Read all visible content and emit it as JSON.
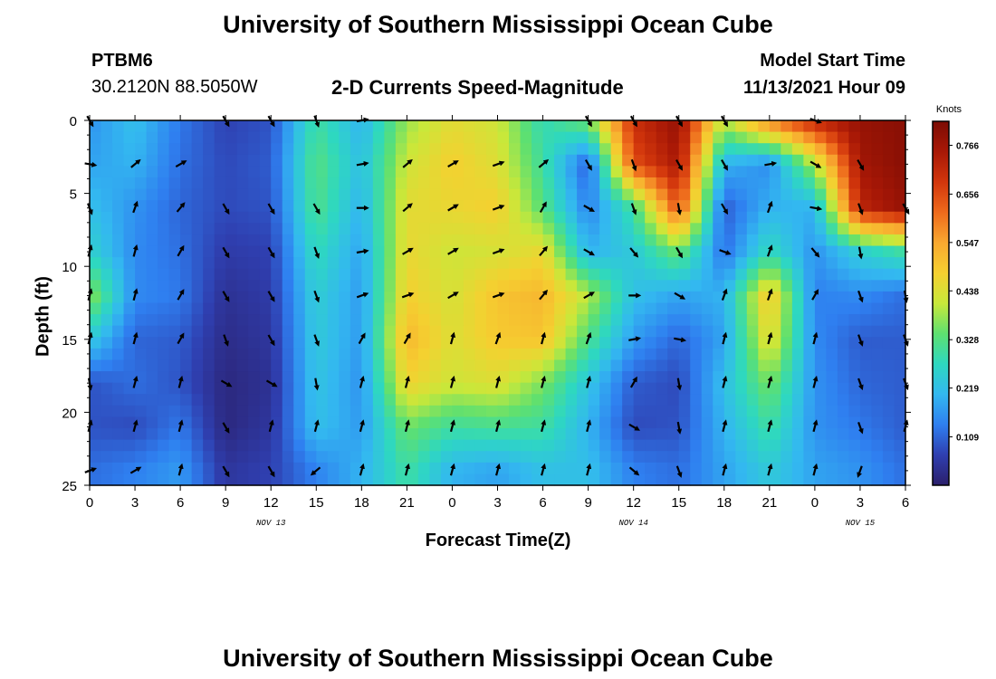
{
  "header": {
    "title": "University of Southern Mississippi Ocean Cube",
    "station_id": "PTBM6",
    "coords": "30.2120N  88.5050W",
    "subtitle": "2-D Currents Speed-Magnitude",
    "model_start_label": "Model Start Time",
    "model_start_value": "11/13/2021 Hour 09"
  },
  "footer": {
    "title": "University of Southern Mississippi Ocean Cube"
  },
  "colors": {
    "colormap": [
      "#2b1f6b",
      "#2f3fb0",
      "#2f7ff0",
      "#33b8f0",
      "#2ed8c0",
      "#5ee070",
      "#c8e83a",
      "#f5d030",
      "#f8a830",
      "#ee6a1c",
      "#d2360c",
      "#a81806",
      "#7c0c04"
    ]
  },
  "chart_data": {
    "type": "heatmap",
    "title": "2-D Currents Speed-Magnitude",
    "xlabel": "Forecast Time(Z)",
    "ylabel": "Depth (ft)",
    "colorbar_label": "Knots",
    "colorbar_ticks": [
      "0.766",
      "0.656",
      "0.547",
      "0.438",
      "0.328",
      "0.219",
      "0.109"
    ],
    "colorbar_range": [
      0.0,
      0.82
    ],
    "x_tick_labels": [
      "0",
      "3",
      "6",
      "9",
      "12",
      "15",
      "18",
      "21",
      "0",
      "3",
      "6",
      "9",
      "12",
      "15",
      "18",
      "21",
      "0",
      "3",
      "6"
    ],
    "x_range_hours": [
      0,
      54
    ],
    "date_labels": [
      {
        "text": "NOV 13",
        "hour": 12
      },
      {
        "text": "NOV 14",
        "hour": 36
      },
      {
        "text": "NOV 15",
        "hour": 51
      }
    ],
    "y_ticks": [
      0,
      5,
      10,
      15,
      20,
      25
    ],
    "ylim": [
      0,
      25
    ],
    "depths": [
      0,
      3,
      6,
      9,
      12,
      15,
      18,
      21,
      24
    ],
    "hours": [
      0,
      3,
      6,
      9,
      12,
      15,
      18,
      21,
      24,
      27,
      30,
      33,
      36,
      39,
      42,
      45,
      48,
      51,
      54
    ],
    "speed_knots": [
      [
        0.16,
        0.22,
        0.13,
        0.07,
        0.09,
        0.3,
        0.2,
        0.38,
        0.45,
        0.42,
        0.28,
        0.36,
        0.7,
        0.78,
        0.4,
        0.6,
        0.72,
        0.78,
        0.8
      ],
      [
        0.18,
        0.2,
        0.12,
        0.08,
        0.1,
        0.33,
        0.22,
        0.42,
        0.48,
        0.44,
        0.3,
        0.1,
        0.65,
        0.75,
        0.2,
        0.15,
        0.4,
        0.76,
        0.8
      ],
      [
        0.22,
        0.16,
        0.11,
        0.08,
        0.09,
        0.32,
        0.2,
        0.45,
        0.46,
        0.48,
        0.33,
        0.14,
        0.3,
        0.65,
        0.1,
        0.2,
        0.2,
        0.72,
        0.78
      ],
      [
        0.26,
        0.15,
        0.12,
        0.06,
        0.07,
        0.28,
        0.18,
        0.46,
        0.42,
        0.43,
        0.46,
        0.2,
        0.24,
        0.35,
        0.12,
        0.28,
        0.16,
        0.25,
        0.3
      ],
      [
        0.38,
        0.15,
        0.13,
        0.04,
        0.06,
        0.25,
        0.17,
        0.48,
        0.43,
        0.5,
        0.52,
        0.4,
        0.22,
        0.18,
        0.2,
        0.5,
        0.14,
        0.15,
        0.12
      ],
      [
        0.24,
        0.11,
        0.1,
        0.03,
        0.05,
        0.24,
        0.17,
        0.52,
        0.44,
        0.49,
        0.5,
        0.32,
        0.17,
        0.11,
        0.18,
        0.46,
        0.15,
        0.1,
        0.1
      ],
      [
        0.09,
        0.12,
        0.09,
        0.02,
        0.04,
        0.23,
        0.16,
        0.47,
        0.42,
        0.44,
        0.36,
        0.23,
        0.1,
        0.08,
        0.22,
        0.36,
        0.16,
        0.11,
        0.1
      ],
      [
        0.09,
        0.08,
        0.13,
        0.02,
        0.05,
        0.22,
        0.17,
        0.35,
        0.3,
        0.31,
        0.3,
        0.2,
        0.08,
        0.09,
        0.2,
        0.3,
        0.16,
        0.13,
        0.1
      ],
      [
        0.12,
        0.14,
        0.17,
        0.05,
        0.07,
        0.14,
        0.2,
        0.3,
        0.2,
        0.18,
        0.22,
        0.22,
        0.14,
        0.12,
        0.18,
        0.24,
        0.18,
        0.16,
        0.12
      ]
    ],
    "direction_deg": [
      [
        150,
        null,
        null,
        150,
        150,
        160,
        80,
        null,
        null,
        null,
        null,
        150,
        150,
        150,
        150,
        null,
        110,
        null,
        null
      ],
      [
        100,
        50,
        60,
        null,
        null,
        null,
        80,
        50,
        60,
        70,
        50,
        150,
        160,
        150,
        150,
        80,
        120,
        150,
        null
      ],
      [
        160,
        20,
        40,
        150,
        150,
        150,
        90,
        50,
        60,
        70,
        30,
        120,
        160,
        170,
        150,
        20,
        100,
        160,
        150
      ],
      [
        15,
        15,
        30,
        150,
        150,
        160,
        80,
        60,
        60,
        70,
        40,
        120,
        140,
        150,
        110,
        20,
        140,
        170,
        null
      ],
      [
        15,
        15,
        30,
        150,
        150,
        160,
        70,
        70,
        60,
        70,
        40,
        60,
        90,
        120,
        20,
        20,
        30,
        160,
        170
      ],
      [
        15,
        15,
        30,
        160,
        150,
        160,
        30,
        30,
        15,
        20,
        15,
        20,
        80,
        100,
        15,
        15,
        15,
        160,
        160
      ],
      [
        170,
        15,
        15,
        120,
        120,
        170,
        15,
        15,
        15,
        15,
        15,
        15,
        30,
        170,
        15,
        15,
        15,
        160,
        160
      ],
      [
        15,
        15,
        15,
        150,
        15,
        15,
        15,
        15,
        15,
        15,
        15,
        15,
        120,
        170,
        15,
        15,
        15,
        160,
        15
      ],
      [
        70,
        60,
        15,
        150,
        150,
        230,
        15,
        15,
        15,
        15,
        15,
        15,
        130,
        160,
        15,
        15,
        15,
        200,
        null
      ]
    ]
  }
}
